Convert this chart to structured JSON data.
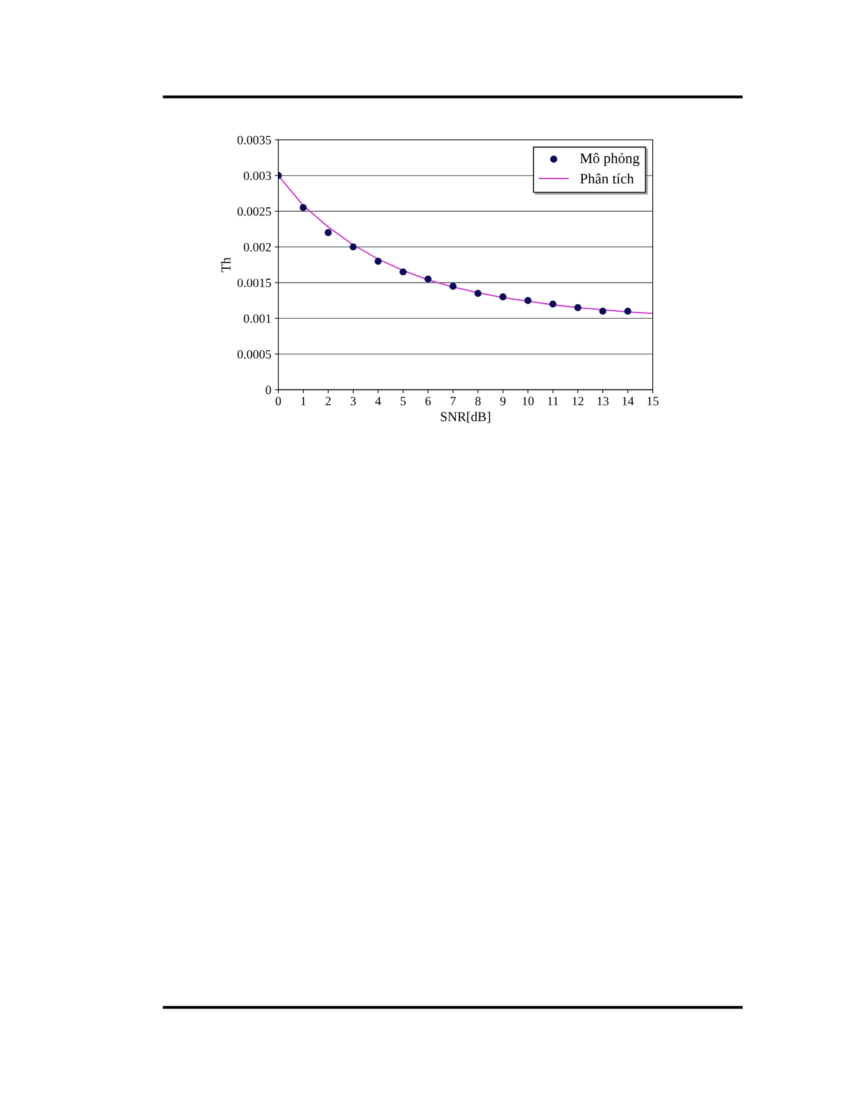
{
  "chart_data": {
    "type": "line",
    "xlabel": "SNR[dB]",
    "ylabel": "Th",
    "xlim": [
      0,
      15
    ],
    "xticks": [
      0,
      1,
      2,
      3,
      4,
      5,
      6,
      7,
      8,
      9,
      10,
      11,
      12,
      13,
      14,
      15
    ],
    "ylim": [
      0,
      0.0035
    ],
    "yticks": [
      0,
      0.0005,
      0.001,
      0.0015,
      0.002,
      0.0025,
      0.003,
      0.0035
    ],
    "grid": "y",
    "legend": "top right",
    "series": [
      {
        "name": "Mô phỏng",
        "type": "scatter",
        "marker": "circle",
        "color": "#0a0a5a",
        "x": [
          0,
          1,
          2,
          3,
          4,
          5,
          6,
          7,
          8,
          9,
          10,
          11,
          12,
          13,
          14
        ],
        "values": [
          0.003,
          0.00255,
          0.0022,
          0.002,
          0.0018,
          0.00165,
          0.00155,
          0.00145,
          0.00135,
          0.0013,
          0.00125,
          0.0012,
          0.00115,
          0.0011,
          0.0011
        ]
      },
      {
        "name": "Phân tích",
        "line_style": "solid",
        "color": "#cc33cc",
        "x": [
          0,
          1,
          2,
          3,
          4,
          5,
          6,
          7,
          8,
          9,
          10,
          11,
          12,
          13,
          14,
          15
        ],
        "values": [
          0.003,
          0.00258,
          0.00228,
          0.00203,
          0.00183,
          0.00167,
          0.00154,
          0.00144,
          0.00136,
          0.00129,
          0.00124,
          0.00119,
          0.00115,
          0.00112,
          0.00109,
          0.00107
        ]
      }
    ]
  }
}
